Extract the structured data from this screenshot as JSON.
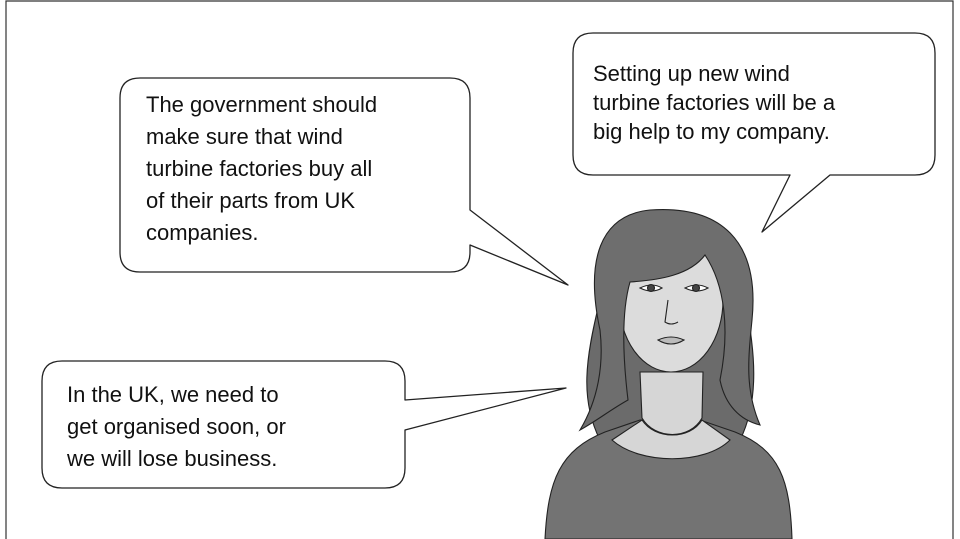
{
  "bubbles": [
    {
      "lines": [
        "The government should",
        "make sure that wind",
        "turbine factories buy all",
        "of their parts from UK",
        "companies."
      ]
    },
    {
      "lines": [
        "Setting up new wind",
        "turbine factories will be a",
        "big help to my company."
      ]
    },
    {
      "lines": [
        "In the UK, we need to",
        "get organised soon, or",
        "we will lose business."
      ]
    }
  ]
}
